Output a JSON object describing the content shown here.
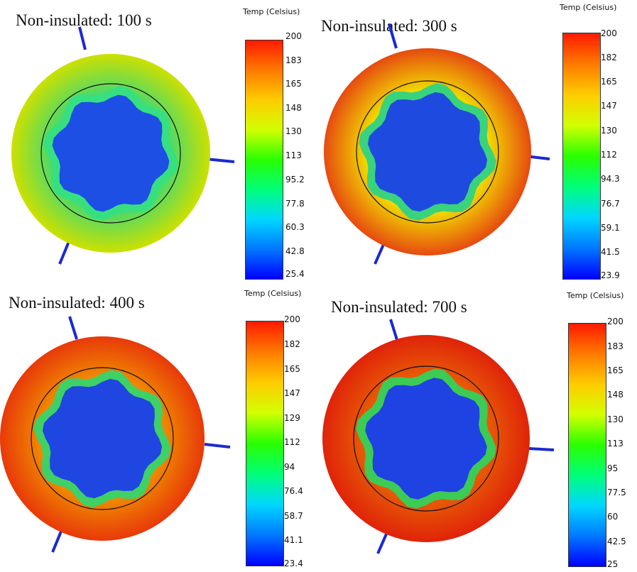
{
  "legend_colors": {
    "stops": [
      "#0000ff",
      "#0078ff",
      "#00d7ff",
      "#00ff7a",
      "#29ff00",
      "#d2ff00",
      "#ffcc00",
      "#ff7a00",
      "#ff1a00"
    ]
  },
  "panels": [
    {
      "title": "Non-insulated: 100 s",
      "unit": "Temp (Celsius)",
      "ticks": [
        "200",
        "183",
        "165",
        "148",
        "130",
        "113",
        "95.2",
        "77.8",
        "60.3",
        "42.8",
        "25.4"
      ],
      "colors": {
        "outer": "#cde000",
        "ring": "#4cd96a",
        "core": "#1d4fe5",
        "ring2": "#36e080"
      }
    },
    {
      "title": "Non-insulated: 300 s",
      "unit": "Temp (Celsius)",
      "ticks": [
        "200",
        "182",
        "165",
        "147",
        "130",
        "112",
        "94.3",
        "76.7",
        "59.1",
        "41.5",
        "23.9"
      ],
      "colors": {
        "outer": "#e64a10",
        "ring": "#f1d800",
        "core": "#1f4ae0",
        "ring2": "#38d37c"
      }
    },
    {
      "title": "Non-insulated: 400 s",
      "unit": "Temp (Celsius)",
      "ticks": [
        "200",
        "182",
        "165",
        "147",
        "129",
        "112",
        "94",
        "76.4",
        "58.7",
        "41.1",
        "23.4"
      ],
      "colors": {
        "outer": "#e8390a",
        "ring": "#f08a00",
        "core": "#1f46e1",
        "ring2": "#3fd066"
      }
    },
    {
      "title": "Non-insulated: 700 s",
      "unit": "Temp (Celsius)",
      "ticks": [
        "200",
        "183",
        "165",
        "148",
        "130",
        "113",
        "95",
        "77.5",
        "60",
        "42.5",
        "25"
      ],
      "colors": {
        "outer": "#e0230a",
        "ring": "#e75c06",
        "core": "#1f42e3",
        "ring2": "#3ccb55"
      }
    }
  ]
}
